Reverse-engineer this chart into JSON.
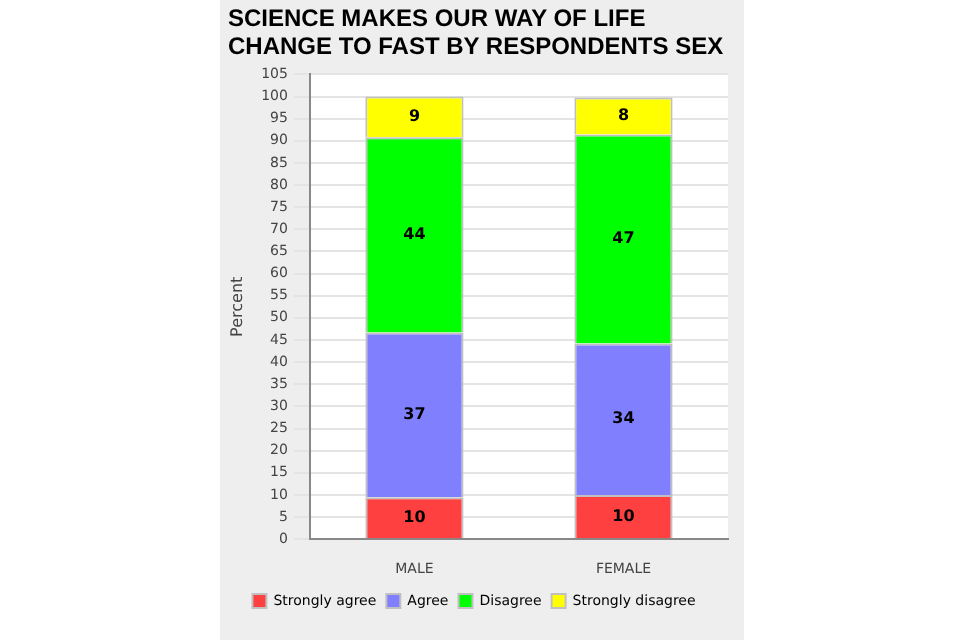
{
  "chart_data": {
    "type": "bar",
    "title": "SCIENCE MAKES OUR WAY OF LIFE CHANGE TO FAST BY RESPONDENTS SEX",
    "ylabel": "Percent",
    "categories": [
      "MALE",
      "FEMALE"
    ],
    "stacked": true,
    "series": [
      {
        "name": "Strongly agree",
        "color": "#ff4040",
        "values": [
          9.5,
          10.0
        ],
        "value_labels": [
          "10",
          "10"
        ]
      },
      {
        "name": "Agree",
        "color": "#8080ff",
        "values": [
          37.2,
          34.2
        ],
        "value_labels": [
          "37",
          "34"
        ]
      },
      {
        "name": "Disagree",
        "color": "#00ff00",
        "values": [
          44.1,
          47.2
        ],
        "value_labels": [
          "44",
          "47"
        ]
      },
      {
        "name": "Strongly disagree",
        "color": "#ffff00",
        "values": [
          9.2,
          8.4
        ],
        "value_labels": [
          "9",
          "8"
        ]
      }
    ],
    "ylim": [
      0,
      105
    ],
    "yticks": [
      0,
      5,
      10,
      15,
      20,
      25,
      30,
      35,
      40,
      45,
      50,
      55,
      60,
      65,
      70,
      75,
      80,
      85,
      90,
      95,
      100,
      105
    ],
    "grid": "y",
    "legend": "bottom"
  }
}
